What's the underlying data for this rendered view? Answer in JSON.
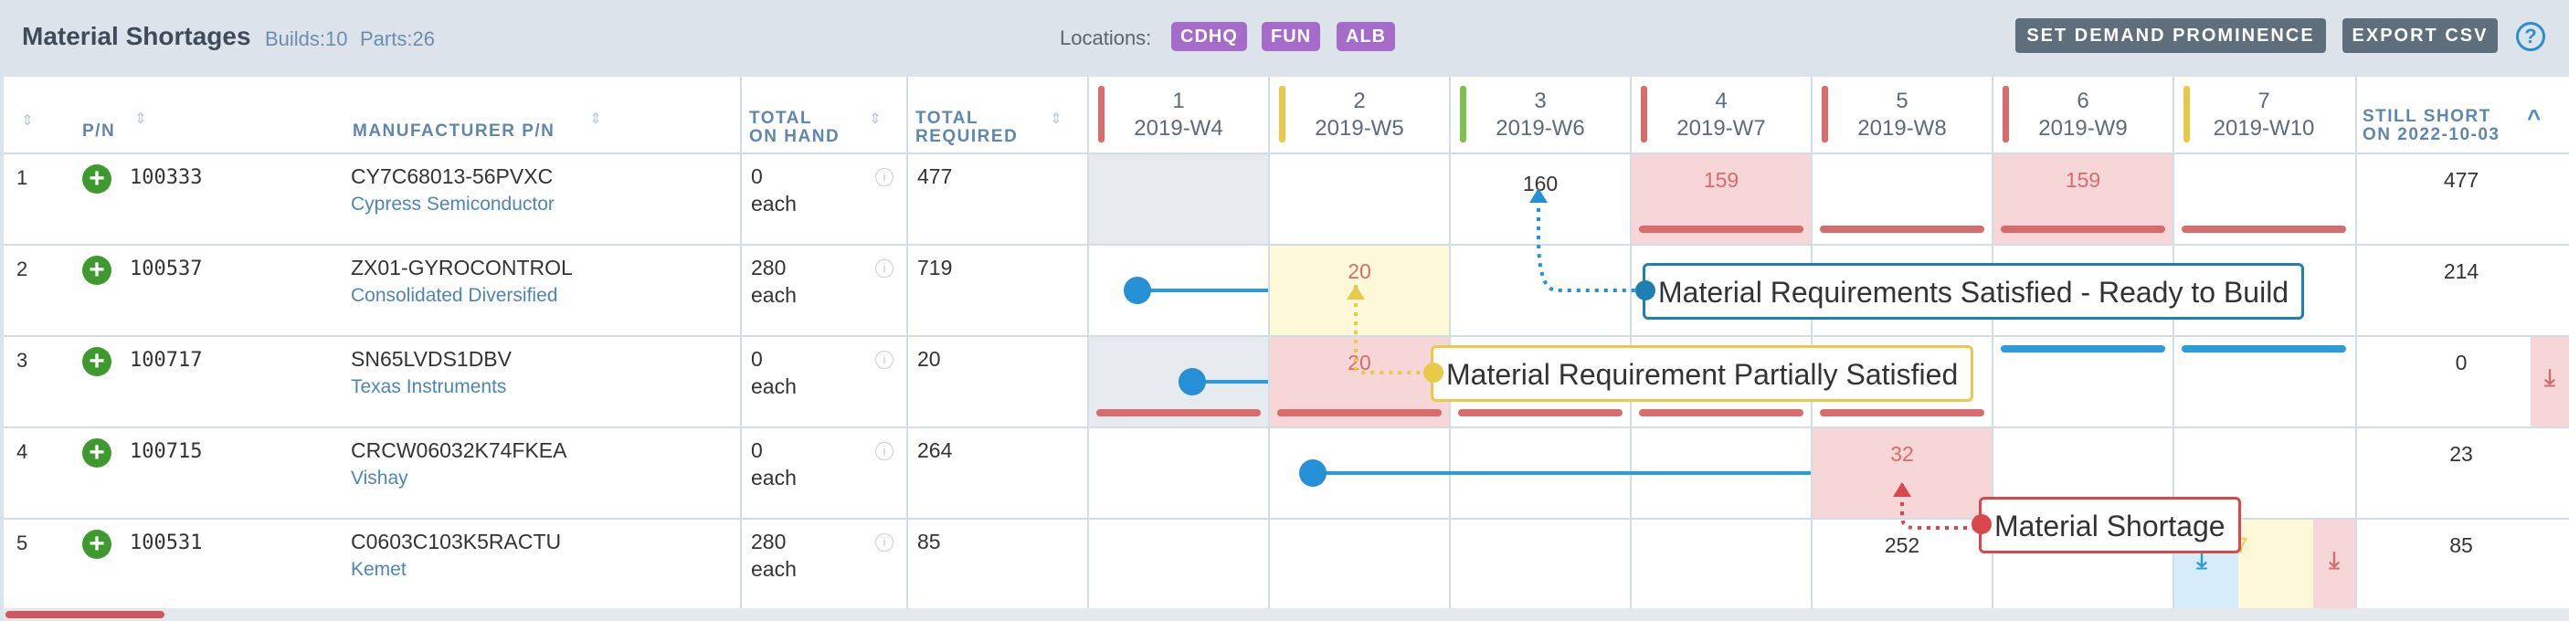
{
  "header": {
    "title": "Material Shortages",
    "builds": "Builds:10",
    "parts": "Parts:26",
    "locations_label": "Locations:",
    "locations": [
      "CDHQ",
      "FUN",
      "ALB"
    ],
    "set_demand_label": "SET DEMAND PROMINENCE",
    "export_label": "EXPORT CSV",
    "help_glyph": "?"
  },
  "columns": {
    "pn": "P/N",
    "mpn": "MANUFACTURER P/N",
    "on_hand_1": "TOTAL",
    "on_hand_2": "ON HAND",
    "required_1": "TOTAL",
    "required_2": "REQUIRED",
    "still_1": "STILL SHORT",
    "still_2": "ON 2022-10-03",
    "sort_glyph": "⇕",
    "caret_glyph": "^"
  },
  "weeks": [
    {
      "num": "1",
      "label": "2019-W4",
      "color": "#d86b6b"
    },
    {
      "num": "2",
      "label": "2019-W5",
      "color": "#e8c94a"
    },
    {
      "num": "3",
      "label": "2019-W6",
      "color": "#7fbf4d"
    },
    {
      "num": "4",
      "label": "2019-W7",
      "color": "#d86b6b"
    },
    {
      "num": "5",
      "label": "2019-W8",
      "color": "#d86b6b"
    },
    {
      "num": "6",
      "label": "2019-W9",
      "color": "#d86b6b"
    },
    {
      "num": "7",
      "label": "2019-W10",
      "color": "#e8c94a"
    }
  ],
  "rows": [
    {
      "num": "1",
      "plus": "+",
      "pn": "100333",
      "mpn": "CY7C68013-56PVXC",
      "mfr": "Cypress Semiconductor",
      "on_hand": "0",
      "unit": "each",
      "info": "i",
      "required": "477",
      "still": "477"
    },
    {
      "num": "2",
      "plus": "+",
      "pn": "100537",
      "mpn": "ZX01-GYROCONTROL",
      "mfr": "Consolidated Diversified",
      "on_hand": "280",
      "unit": "each",
      "info": "i",
      "required": "719",
      "still": "214"
    },
    {
      "num": "3",
      "plus": "+",
      "pn": "100717",
      "mpn": "SN65LVDS1DBV",
      "mfr": "Texas Instruments",
      "on_hand": "0",
      "unit": "each",
      "info": "i",
      "required": "20",
      "still": "0"
    },
    {
      "num": "4",
      "plus": "+",
      "pn": "100715",
      "mpn": "CRCW06032K74FKEA",
      "mfr": "Vishay",
      "on_hand": "0",
      "unit": "each",
      "info": "i",
      "required": "264",
      "still": "23"
    },
    {
      "num": "5",
      "plus": "+",
      "pn": "100531",
      "mpn": "C0603C103K5RACTU",
      "mfr": "Kemet",
      "on_hand": "280",
      "unit": "each",
      "info": "i",
      "required": "85",
      "still": "85"
    }
  ],
  "grid_values": {
    "r1_w3": "160",
    "r1_w4": "159",
    "r1_w6": "159",
    "r2_w2": "20",
    "r3_w2": "20",
    "r4_w5": "32",
    "r5_w5": "252",
    "r5_w7": "7"
  },
  "download_glyph": "⤓",
  "callouts": {
    "satisfied": "Material Requirements Satisfied - Ready to Build",
    "partial": "Material Requirement Partially Satisfied",
    "shortage": "Material Shortage"
  },
  "colors": {
    "shortage": "#d86b6b",
    "partial": "#e8c94a",
    "satisfied": "#2690d6",
    "green": "#3e9a2e",
    "chip": "#a46bc8"
  }
}
